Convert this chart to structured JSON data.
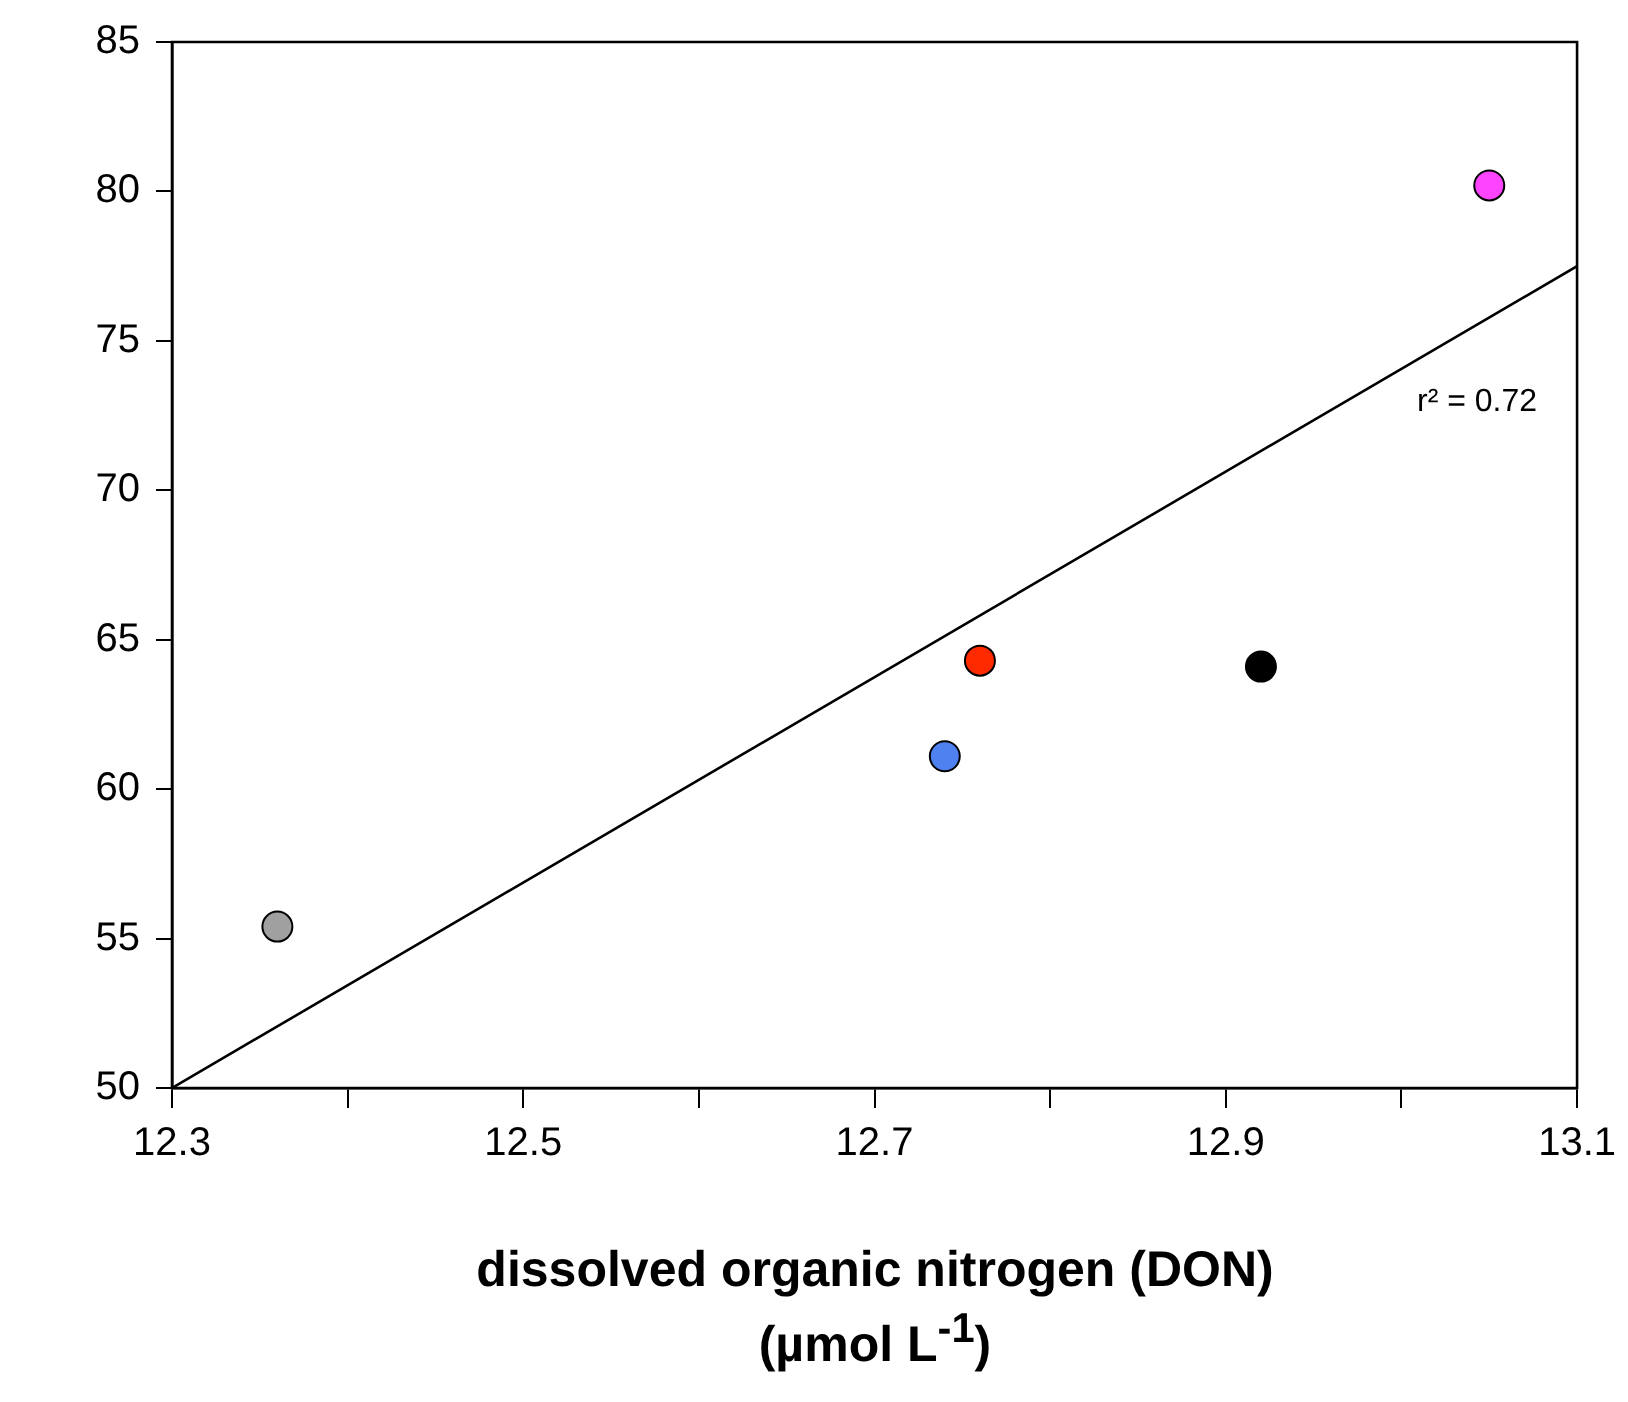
{
  "chart_data": {
    "type": "scatter",
    "xlabel": "dissolved organic nitrogen (DON)\n(µmol L$^{-1}$)",
    "series": [
      {
        "x": [
          12.36,
          12.74,
          12.76,
          12.92,
          13.05
        ],
        "values": [
          55.4,
          61.1,
          64.3,
          64.1,
          80.2
        ],
        "colors": [
          "#a0a0a0",
          "#4f81f0",
          "#ff2a00",
          "#000000",
          "#ff44ff"
        ],
        "marker": "circle"
      },
      {
        "type": "line",
        "x": [
          12.3,
          13.1
        ],
        "values": [
          50,
          77.5
        ],
        "color": "#000000",
        "marker": "none",
        "line_style": "solid"
      }
    ],
    "xlim": [
      12.3,
      13.1
    ],
    "ylim": [
      50,
      85
    ],
    "xticks": [
      12.3,
      {
        "value": 12.4,
        "label": null
      },
      12.5,
      {
        "value": 12.6,
        "label": null
      },
      12.7,
      {
        "value": 12.8,
        "label": null
      },
      12.9,
      {
        "value": 13.0,
        "label": null
      },
      13.1
    ],
    "yticks": [
      50,
      55,
      60,
      65,
      70,
      75,
      80,
      85
    ],
    "annotations": [
      "r² = 0.72"
    ],
    "grid": false,
    "legend": false
  }
}
